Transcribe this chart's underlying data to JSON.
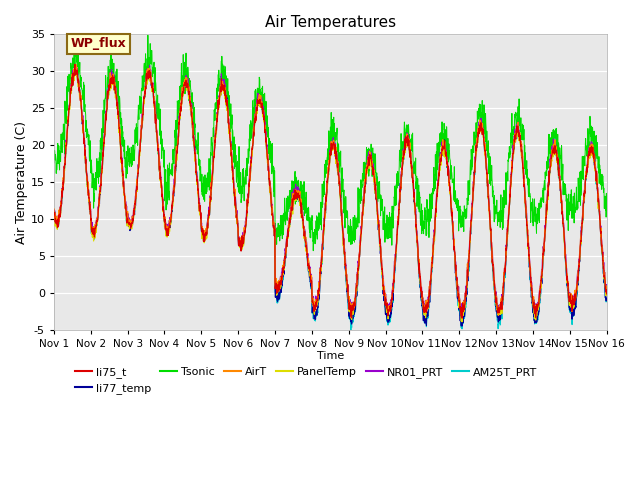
{
  "title": "Air Temperatures",
  "xlabel": "Time",
  "ylabel": "Air Temperature (C)",
  "ylim": [
    -5,
    35
  ],
  "xlim": [
    0,
    15
  ],
  "x_ticks": [
    0,
    1,
    2,
    3,
    4,
    5,
    6,
    7,
    8,
    9,
    10,
    11,
    12,
    13,
    14,
    15
  ],
  "x_tick_labels": [
    "Nov 1",
    "Nov 2",
    "Nov 3",
    "Nov 4",
    "Nov 5",
    "Nov 6",
    "Nov 7",
    "Nov 8",
    "Nov 9",
    "Nov 10",
    "Nov 11",
    "Nov 12",
    "Nov 13",
    "Nov 14",
    "Nov 15",
    "Nov 16"
  ],
  "annotation_text": "WP_flux",
  "annotation_facecolor": "#ffffcc",
  "annotation_edgecolor": "#8B6914",
  "annotation_textcolor": "#8B0000",
  "series_colors": {
    "li75_t": "#dd0000",
    "li77_temp": "#000099",
    "Tsonic": "#00dd00",
    "AirT": "#ff8800",
    "PanelTemp": "#dddd00",
    "NR01_PRT": "#9900cc",
    "AM25T_PRT": "#00cccc"
  },
  "background_color": "#e8e8e8",
  "fig_background": "#ffffff",
  "grid_color": "#ffffff",
  "n_points": 2160,
  "base_day_peaks": [
    30.0,
    29.0,
    29.5,
    28.5,
    28.0,
    26.0,
    13.5,
    20.0,
    18.0,
    20.5,
    19.5,
    22.5,
    22.0,
    19.5,
    19.5
  ],
  "base_night_lows": [
    9.5,
    8.0,
    9.0,
    8.5,
    7.5,
    6.5,
    0.5,
    -2.0,
    -2.5,
    -2.5,
    -2.5,
    -2.5,
    -2.5,
    -2.5,
    -1.5
  ],
  "tsonic_day_peaks": [
    31.5,
    30.5,
    31.5,
    30.0,
    30.0,
    27.5,
    14.5,
    21.5,
    19.0,
    21.5,
    21.0,
    24.0,
    23.5,
    21.0,
    21.0
  ],
  "tsonic_night_lows": [
    18.0,
    15.0,
    18.0,
    15.0,
    14.0,
    14.0,
    8.0,
    8.0,
    8.0,
    9.0,
    9.5,
    10.0,
    10.0,
    10.0,
    11.0
  ],
  "cyan_night_extra": -1.5,
  "blue_night_extra": -1.2,
  "peak_phase": 0.58,
  "trough_phase": 0.25
}
